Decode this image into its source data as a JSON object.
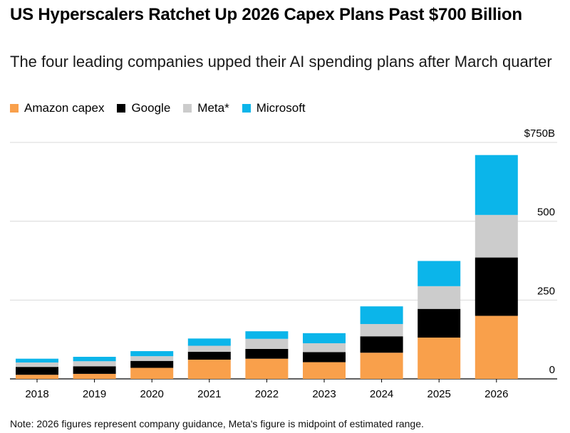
{
  "title": "US Hyperscalers Ratchet Up 2026 Capex Plans Past $700 Billion",
  "subtitle": "The four leading companies upped their AI spending plans after March quarter",
  "note": "Note: 2026 figures represent company guidance, Meta's figure is midpoint of estimated range.",
  "chart_data": {
    "type": "bar",
    "stacked": true,
    "categories": [
      "2018",
      "2019",
      "2020",
      "2021",
      "2022",
      "2023",
      "2024",
      "2025",
      "2026"
    ],
    "series": [
      {
        "name": "Amazon capex",
        "color": "#f9a04b",
        "values": [
          13,
          16,
          35,
          61,
          64,
          53,
          83,
          131,
          200
        ]
      },
      {
        "name": "Google",
        "color": "#000000",
        "values": [
          25,
          24,
          22,
          25,
          31,
          32,
          52,
          91,
          185
        ]
      },
      {
        "name": "Meta*",
        "color": "#cccccc",
        "values": [
          14,
          16,
          15,
          19,
          32,
          28,
          39,
          72,
          135
        ]
      },
      {
        "name": "Microsoft",
        "color": "#0bb5ea",
        "values": [
          12,
          14,
          16,
          23,
          24,
          32,
          56,
          80,
          190
        ]
      }
    ],
    "ylim": [
      0,
      750
    ],
    "yticks": [
      0,
      250,
      500,
      750
    ],
    "ytick_labels": [
      "0",
      "250",
      "500",
      "$750B"
    ],
    "grid": true,
    "axis_position": "right",
    "legend_position": "top-left"
  }
}
